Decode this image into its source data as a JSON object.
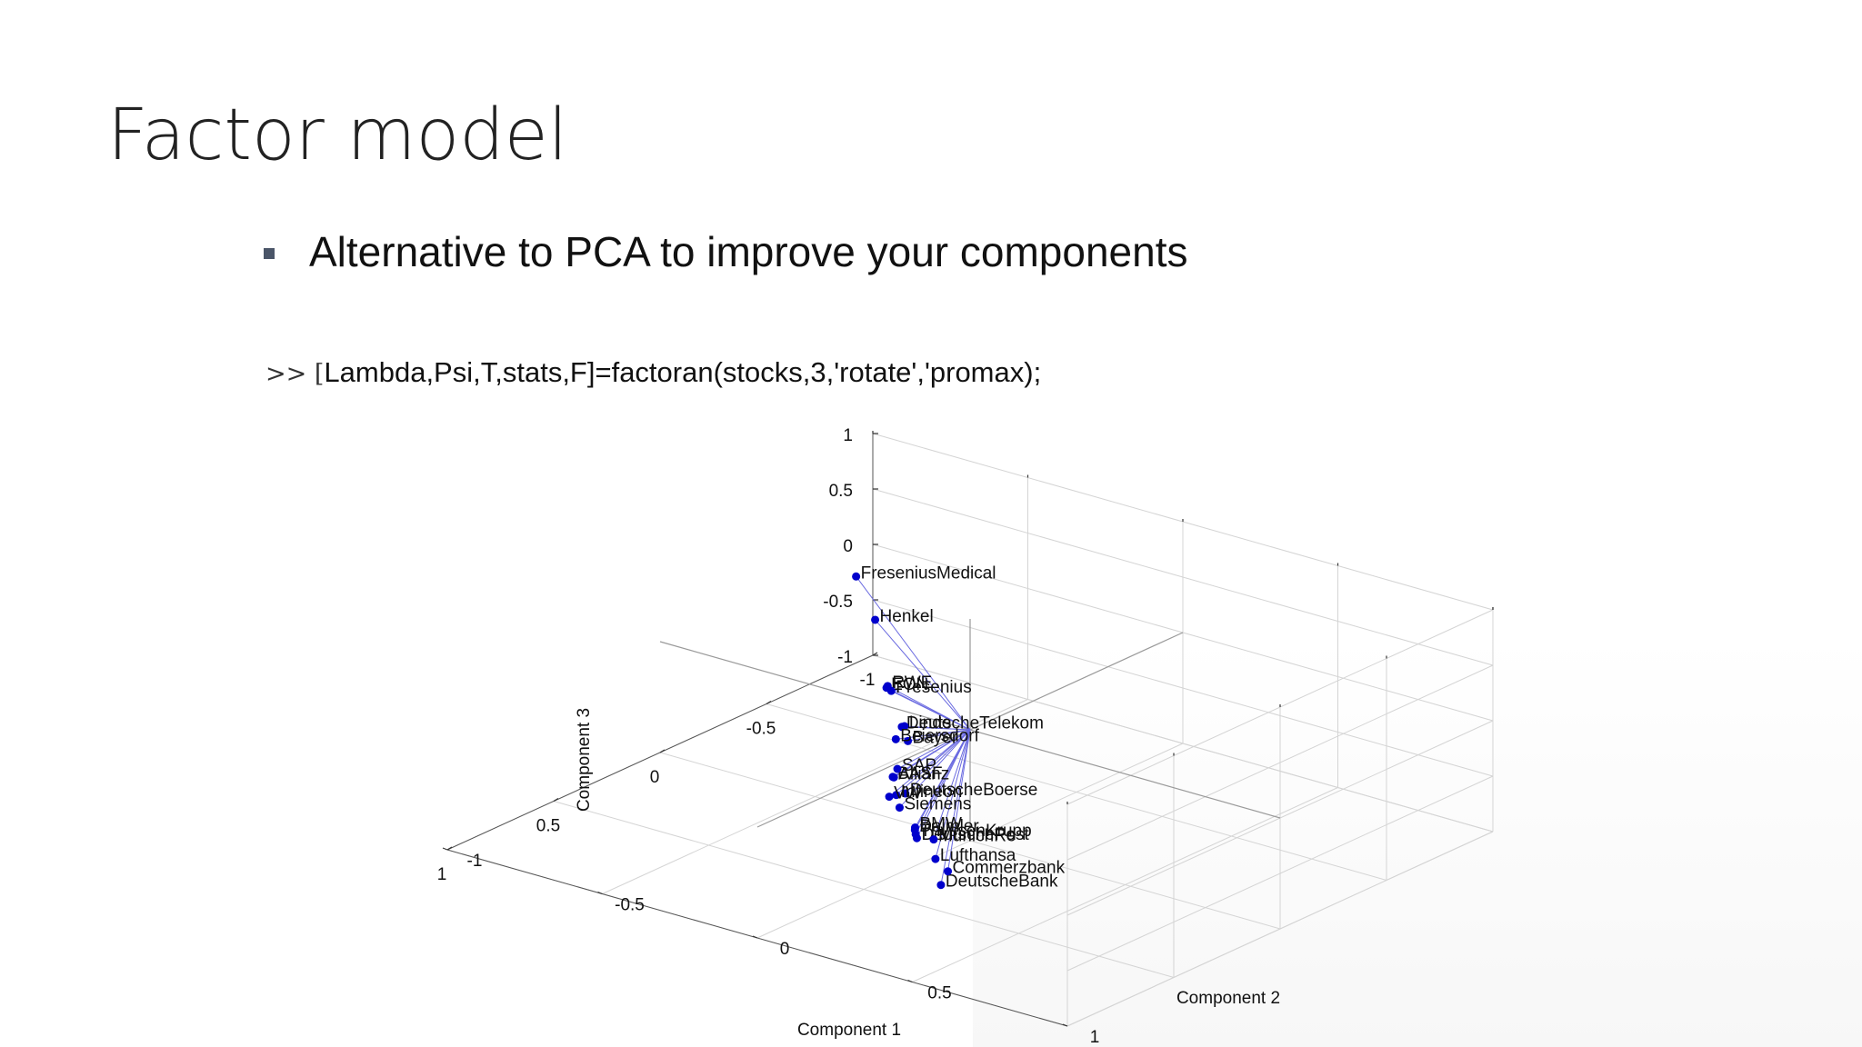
{
  "slide": {
    "title": "Factor model",
    "bullet": "Alternative to PCA to improve your components",
    "code_prompt": ">>",
    "code_bracket": "[",
    "code": "Lambda,Psi,T,stats,F]=factoran(stocks,3,'rotate','promax);"
  },
  "chart_data": {
    "type": "scatter",
    "subtype": "biplot-3d",
    "xlabel": "Component 1",
    "ylabel": "Component 2",
    "zlabel": "Component 3",
    "xlim": [
      -1,
      1
    ],
    "ylim": [
      -1,
      1
    ],
    "zlim": [
      -1,
      1
    ],
    "xticks": [
      "-1",
      "-0.5",
      "0",
      "0.5",
      "1"
    ],
    "yticks": [
      "-1",
      "-0.5",
      "0",
      "0.5",
      "1"
    ],
    "zticks": [
      "-1",
      "-0.5",
      "0",
      "0.5",
      "1"
    ],
    "grid": true,
    "point_color": "#0000cc",
    "line_color": "#6a6ae0",
    "points": [
      {
        "label": "FreseniusMedical",
        "x": -0.12,
        "y": -0.45,
        "z": 0.92
      },
      {
        "label": "Henkel",
        "x": -0.02,
        "y": -0.32,
        "z": 0.72
      },
      {
        "label": "EON",
        "x": 0.32,
        "y": -0.05,
        "z": 0.62
      },
      {
        "label": "RWE",
        "x": 0.3,
        "y": -0.06,
        "z": 0.61
      },
      {
        "label": "DeutscheTelekom",
        "x": 0.35,
        "y": 0.02,
        "z": 0.35
      },
      {
        "label": "Bayer",
        "x": 0.38,
        "y": 0.06,
        "z": 0.28
      },
      {
        "label": "Fresenius",
        "x": 0.05,
        "y": -0.22,
        "z": 0.22
      },
      {
        "label": "Linde",
        "x": 0.25,
        "y": -0.04,
        "z": 0.22
      },
      {
        "label": "Beiersdorf",
        "x": 0.32,
        "y": -0.02,
        "z": 0.18
      },
      {
        "label": "BASF",
        "x": 0.48,
        "y": 0.08,
        "z": 0.06
      },
      {
        "label": "SAP",
        "x": 0.4,
        "y": 0.04,
        "z": 0.03
      },
      {
        "label": "Allianz",
        "x": 0.46,
        "y": 0.07,
        "z": 0.03
      },
      {
        "label": "DeutscheBoerse",
        "x": 0.45,
        "y": 0.1,
        "z": -0.1
      },
      {
        "label": "Siemens",
        "x": 0.55,
        "y": 0.15,
        "z": -0.1
      },
      {
        "label": "Infineon",
        "x": 0.42,
        "y": 0.05,
        "z": -0.18
      },
      {
        "label": "ThyssenKrupp",
        "x": 0.62,
        "y": 0.25,
        "z": -0.2
      },
      {
        "label": "Daimler",
        "x": 0.58,
        "y": 0.22,
        "z": -0.22
      },
      {
        "label": "BMW",
        "x": 0.55,
        "y": 0.2,
        "z": -0.24
      },
      {
        "label": "DeutschePost",
        "x": 0.6,
        "y": 0.24,
        "z": -0.26
      },
      {
        "label": "VW",
        "x": 0.38,
        "y": 0.0,
        "z": -0.27
      },
      {
        "label": "MunichRe",
        "x": 0.55,
        "y": 0.26,
        "z": -0.3
      },
      {
        "label": "Lufthansa",
        "x": 0.6,
        "y": 0.3,
        "z": -0.4
      },
      {
        "label": "DeutscheBank",
        "x": 0.72,
        "y": 0.4,
        "z": -0.45
      },
      {
        "label": "Commerzbank",
        "x": 0.6,
        "y": 0.34,
        "z": -0.48
      }
    ]
  }
}
